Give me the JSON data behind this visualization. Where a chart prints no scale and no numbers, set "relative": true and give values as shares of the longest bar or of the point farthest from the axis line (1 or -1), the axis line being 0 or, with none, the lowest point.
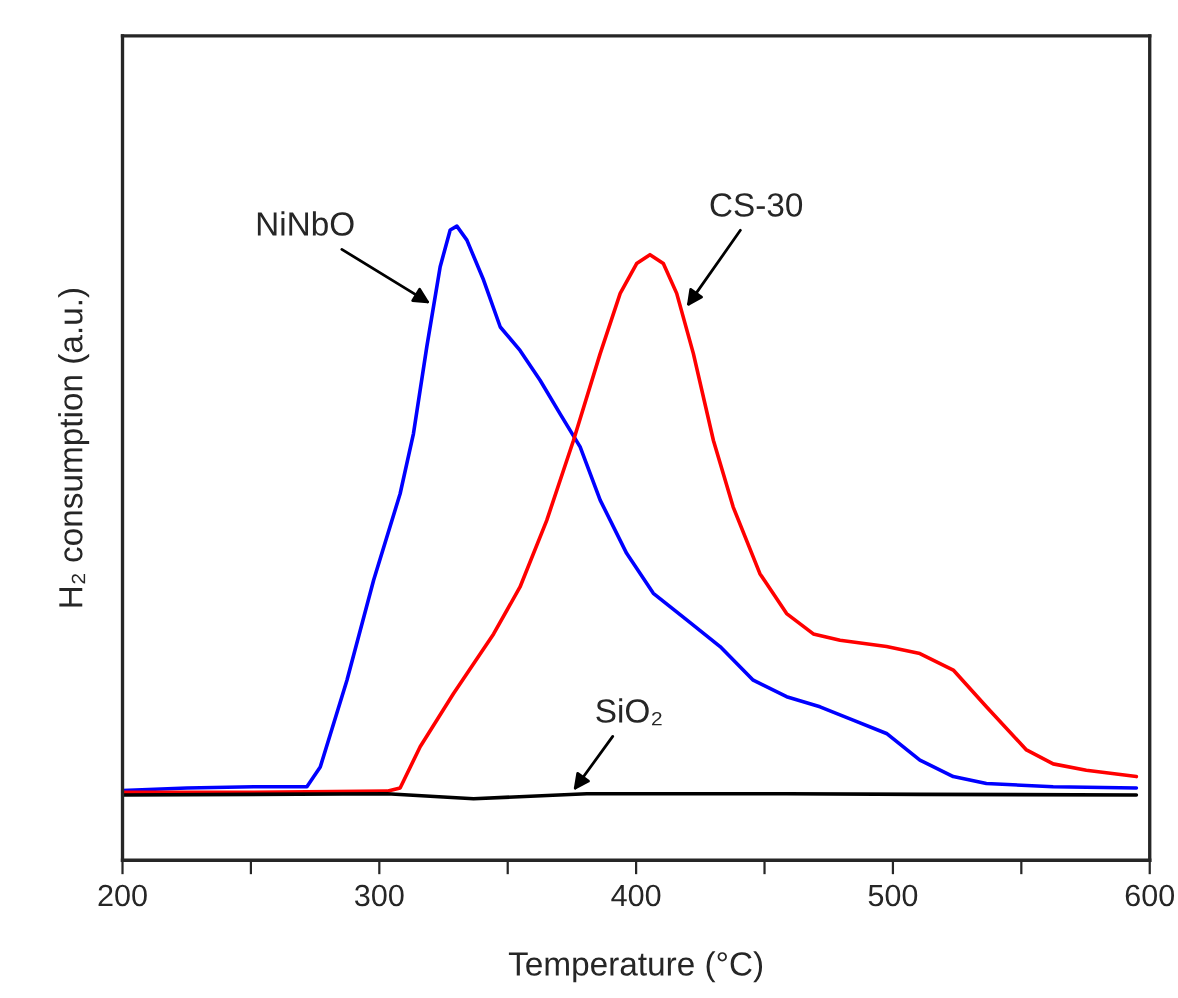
{
  "chart_data": {
    "type": "line",
    "relative": true,
    "xlabel": "Temperature (°C)",
    "ylabel": "H₂ consumption (a.u.)",
    "xlim": [
      200,
      600
    ],
    "xticks": [
      200,
      {
        "value": 250,
        "label": null
      },
      300,
      {
        "value": 350,
        "label": null
      },
      400,
      {
        "value": 450,
        "label": null
      },
      500,
      {
        "value": 550,
        "label": null
      },
      600
    ],
    "grid": false,
    "legend": false,
    "marker": "none",
    "line_style": "solid",
    "series": [
      {
        "color": "#0000ff",
        "x": [
          200,
          225.1,
          251.1,
          271.8,
          277.0,
          287.4,
          297.8,
          308.1,
          313.3,
          318.5,
          323.7,
          327.6,
          330.2,
          334.1,
          340.6,
          347.1,
          354.8,
          362.6,
          370.4,
          378.2,
          386.0,
          396.3,
          406.7,
          419.7,
          432.7,
          445.6,
          458.6,
          471.6,
          484.5,
          497.5,
          510.5,
          523.5,
          536.4,
          562.4,
          594.8
        ],
        "values": [
          0.11,
          0.114,
          0.116,
          0.116,
          0.147,
          0.284,
          0.442,
          0.578,
          0.673,
          0.81,
          0.936,
          0.994,
          1.0,
          0.978,
          0.915,
          0.841,
          0.804,
          0.757,
          0.704,
          0.652,
          0.568,
          0.484,
          0.421,
          0.379,
          0.337,
          0.284,
          0.258,
          0.242,
          0.221,
          0.2,
          0.158,
          0.132,
          0.121,
          0.116,
          0.114
        ]
      },
      {
        "color": "#ff0000",
        "x": [
          200,
          251.1,
          303.0,
          308.1,
          315.9,
          328.9,
          344.5,
          354.8,
          365.2,
          375.6,
          386.0,
          393.8,
          400.2,
          405.4,
          410.6,
          415.8,
          422.3,
          430.1,
          437.8,
          448.2,
          458.6,
          469.0,
          479.4,
          497.5,
          510.5,
          523.5,
          536.4,
          552.0,
          562.4,
          575.3,
          594.8
        ],
        "values": [
          0.107,
          0.107,
          0.109,
          0.114,
          0.179,
          0.263,
          0.357,
          0.431,
          0.536,
          0.662,
          0.799,
          0.894,
          0.941,
          0.955,
          0.941,
          0.894,
          0.799,
          0.662,
          0.557,
          0.452,
          0.389,
          0.357,
          0.347,
          0.337,
          0.326,
          0.3,
          0.242,
          0.174,
          0.152,
          0.142,
          0.132
        ]
      },
      {
        "color": "#000000",
        "x": [
          200,
          303.0,
          336.7,
          380.8,
          458.6,
          510.5,
          594.8
        ],
        "values": [
          0.103,
          0.105,
          0.097,
          0.105,
          0.105,
          0.104,
          0.103
        ]
      }
    ],
    "annotations": [
      {
        "text": "NiNbO",
        "x": 319.8,
        "y": 0.878
      },
      {
        "text": "CS-30",
        "x": 419.7,
        "y": 0.873
      },
      {
        "text": "SiO₂",
        "x": 375.6,
        "y": 0.11
      }
    ]
  }
}
